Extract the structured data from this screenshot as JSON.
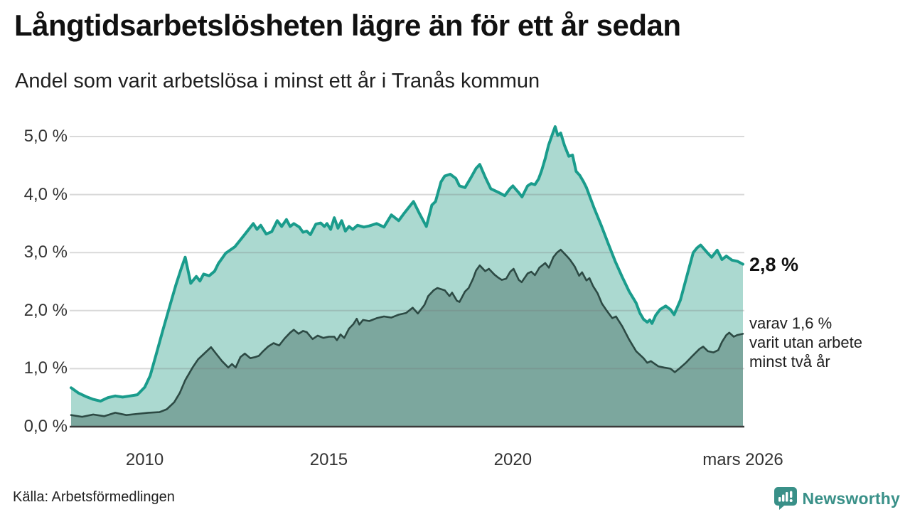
{
  "header": {
    "title": "Långtidsarbetslösheten lägre än för ett år sedan",
    "subtitle": "Andel som varit arbetslösa i minst ett år i Tranås kommun"
  },
  "annotations": {
    "end_value": "2,8 %",
    "sub_lines": [
      "varav 1,6 %",
      "varit utan arbete",
      "minst två år"
    ]
  },
  "footer": {
    "source": "Källa: Arbetsförmedlingen",
    "brand": "Newsworthy"
  },
  "colors": {
    "series1_line": "#1a9c8c",
    "series1_fill": "#abd9d0",
    "series2_line": "#2d4a44",
    "series2_fill": "#7ca79e",
    "grid": "rgba(120,120,120,0.28)",
    "axis": "#3a3a3a",
    "brand": "#399088"
  },
  "chart_data": {
    "type": "area",
    "title": "Långtidsarbetslösheten lägre än för ett år sedan",
    "subtitle": "Andel som varit arbetslösa i minst ett år i Tranås kommun",
    "unit": "%",
    "x_range": [
      2008,
      2026.25
    ],
    "y_range": [
      0,
      5.3
    ],
    "grid": true,
    "x_ticks": [
      {
        "label": "2010",
        "year": 2010
      },
      {
        "label": "2015",
        "year": 2015
      },
      {
        "label": "2020",
        "year": 2020
      },
      {
        "label": "mars 2026",
        "year": 2026.25
      }
    ],
    "y_ticks": [
      {
        "label": "0,0 %",
        "value": 0
      },
      {
        "label": "1,0 %",
        "value": 1
      },
      {
        "label": "2,0 %",
        "value": 2
      },
      {
        "label": "3,0 %",
        "value": 3
      },
      {
        "label": "4,0 %",
        "value": 4
      },
      {
        "label": "5,0 %",
        "value": 5
      }
    ],
    "series": [
      {
        "name": "arbetslösa minst ett år",
        "end_value_pct": 2.8,
        "end_label": "2,8 %",
        "points": [
          [
            2008.0,
            0.67
          ],
          [
            2008.2,
            0.58
          ],
          [
            2008.4,
            0.52
          ],
          [
            2008.6,
            0.47
          ],
          [
            2008.8,
            0.44
          ],
          [
            2009.0,
            0.5
          ],
          [
            2009.2,
            0.53
          ],
          [
            2009.4,
            0.51
          ],
          [
            2009.6,
            0.53
          ],
          [
            2009.8,
            0.55
          ],
          [
            2010.0,
            0.68
          ],
          [
            2010.15,
            0.88
          ],
          [
            2010.3,
            1.22
          ],
          [
            2010.5,
            1.68
          ],
          [
            2010.7,
            2.12
          ],
          [
            2010.85,
            2.45
          ],
          [
            2011.0,
            2.74
          ],
          [
            2011.1,
            2.92
          ],
          [
            2011.25,
            2.47
          ],
          [
            2011.4,
            2.59
          ],
          [
            2011.5,
            2.51
          ],
          [
            2011.6,
            2.63
          ],
          [
            2011.75,
            2.6
          ],
          [
            2011.9,
            2.68
          ],
          [
            2012.0,
            2.81
          ],
          [
            2012.2,
            2.99
          ],
          [
            2012.45,
            3.1
          ],
          [
            2012.7,
            3.3
          ],
          [
            2012.95,
            3.5
          ],
          [
            2013.05,
            3.4
          ],
          [
            2013.15,
            3.47
          ],
          [
            2013.3,
            3.32
          ],
          [
            2013.45,
            3.36
          ],
          [
            2013.6,
            3.55
          ],
          [
            2013.72,
            3.45
          ],
          [
            2013.85,
            3.57
          ],
          [
            2013.95,
            3.45
          ],
          [
            2014.05,
            3.5
          ],
          [
            2014.2,
            3.44
          ],
          [
            2014.3,
            3.35
          ],
          [
            2014.4,
            3.37
          ],
          [
            2014.5,
            3.31
          ],
          [
            2014.65,
            3.49
          ],
          [
            2014.78,
            3.51
          ],
          [
            2014.88,
            3.45
          ],
          [
            2014.95,
            3.5
          ],
          [
            2015.05,
            3.4
          ],
          [
            2015.15,
            3.6
          ],
          [
            2015.25,
            3.42
          ],
          [
            2015.35,
            3.55
          ],
          [
            2015.45,
            3.37
          ],
          [
            2015.55,
            3.45
          ],
          [
            2015.65,
            3.4
          ],
          [
            2015.78,
            3.47
          ],
          [
            2015.95,
            3.44
          ],
          [
            2016.1,
            3.46
          ],
          [
            2016.3,
            3.5
          ],
          [
            2016.5,
            3.44
          ],
          [
            2016.7,
            3.65
          ],
          [
            2016.9,
            3.55
          ],
          [
            2017.05,
            3.68
          ],
          [
            2017.3,
            3.88
          ],
          [
            2017.45,
            3.69
          ],
          [
            2017.65,
            3.45
          ],
          [
            2017.8,
            3.82
          ],
          [
            2017.9,
            3.88
          ],
          [
            2018.05,
            4.22
          ],
          [
            2018.15,
            4.32
          ],
          [
            2018.3,
            4.35
          ],
          [
            2018.45,
            4.28
          ],
          [
            2018.55,
            4.15
          ],
          [
            2018.7,
            4.12
          ],
          [
            2018.85,
            4.28
          ],
          [
            2019.0,
            4.45
          ],
          [
            2019.1,
            4.52
          ],
          [
            2019.25,
            4.3
          ],
          [
            2019.4,
            4.1
          ],
          [
            2019.6,
            4.04
          ],
          [
            2019.78,
            3.98
          ],
          [
            2019.92,
            4.1
          ],
          [
            2020.0,
            4.15
          ],
          [
            2020.15,
            4.04
          ],
          [
            2020.25,
            3.96
          ],
          [
            2020.4,
            4.15
          ],
          [
            2020.5,
            4.19
          ],
          [
            2020.6,
            4.17
          ],
          [
            2020.7,
            4.27
          ],
          [
            2020.78,
            4.41
          ],
          [
            2020.88,
            4.62
          ],
          [
            2020.97,
            4.85
          ],
          [
            2021.08,
            5.05
          ],
          [
            2021.15,
            5.17
          ],
          [
            2021.22,
            5.02
          ],
          [
            2021.3,
            5.06
          ],
          [
            2021.4,
            4.85
          ],
          [
            2021.52,
            4.66
          ],
          [
            2021.62,
            4.68
          ],
          [
            2021.72,
            4.4
          ],
          [
            2021.82,
            4.33
          ],
          [
            2021.92,
            4.22
          ],
          [
            2022.0,
            4.12
          ],
          [
            2022.2,
            3.78
          ],
          [
            2022.4,
            3.47
          ],
          [
            2022.6,
            3.14
          ],
          [
            2022.78,
            2.85
          ],
          [
            2022.97,
            2.58
          ],
          [
            2023.16,
            2.33
          ],
          [
            2023.35,
            2.13
          ],
          [
            2023.45,
            1.96
          ],
          [
            2023.55,
            1.85
          ],
          [
            2023.65,
            1.8
          ],
          [
            2023.72,
            1.84
          ],
          [
            2023.78,
            1.78
          ],
          [
            2023.88,
            1.92
          ],
          [
            2024.0,
            2.02
          ],
          [
            2024.15,
            2.08
          ],
          [
            2024.28,
            2.02
          ],
          [
            2024.38,
            1.93
          ],
          [
            2024.55,
            2.18
          ],
          [
            2024.72,
            2.58
          ],
          [
            2024.9,
            3.0
          ],
          [
            2025.0,
            3.08
          ],
          [
            2025.1,
            3.13
          ],
          [
            2025.28,
            3.0
          ],
          [
            2025.4,
            2.92
          ],
          [
            2025.55,
            3.04
          ],
          [
            2025.68,
            2.88
          ],
          [
            2025.8,
            2.94
          ],
          [
            2025.95,
            2.87
          ],
          [
            2026.1,
            2.85
          ],
          [
            2026.25,
            2.8
          ]
        ]
      },
      {
        "name": "varav utan arbete minst två år",
        "end_value_pct": 1.6,
        "end_label": "1,6 %",
        "points": [
          [
            2008.0,
            0.2
          ],
          [
            2008.3,
            0.17
          ],
          [
            2008.6,
            0.21
          ],
          [
            2008.9,
            0.18
          ],
          [
            2009.2,
            0.24
          ],
          [
            2009.5,
            0.2
          ],
          [
            2009.8,
            0.22
          ],
          [
            2010.1,
            0.24
          ],
          [
            2010.4,
            0.25
          ],
          [
            2010.6,
            0.3
          ],
          [
            2010.8,
            0.42
          ],
          [
            2010.95,
            0.58
          ],
          [
            2011.1,
            0.8
          ],
          [
            2011.3,
            1.02
          ],
          [
            2011.45,
            1.16
          ],
          [
            2011.6,
            1.25
          ],
          [
            2011.8,
            1.37
          ],
          [
            2011.95,
            1.25
          ],
          [
            2012.1,
            1.13
          ],
          [
            2012.27,
            1.02
          ],
          [
            2012.37,
            1.08
          ],
          [
            2012.47,
            1.02
          ],
          [
            2012.6,
            1.2
          ],
          [
            2012.72,
            1.26
          ],
          [
            2012.87,
            1.18
          ],
          [
            2013.0,
            1.2
          ],
          [
            2013.1,
            1.22
          ],
          [
            2013.2,
            1.29
          ],
          [
            2013.35,
            1.38
          ],
          [
            2013.5,
            1.44
          ],
          [
            2013.65,
            1.4
          ],
          [
            2013.8,
            1.52
          ],
          [
            2013.95,
            1.62
          ],
          [
            2014.05,
            1.67
          ],
          [
            2014.18,
            1.6
          ],
          [
            2014.3,
            1.65
          ],
          [
            2014.4,
            1.63
          ],
          [
            2014.56,
            1.51
          ],
          [
            2014.7,
            1.57
          ],
          [
            2014.85,
            1.53
          ],
          [
            2015.0,
            1.55
          ],
          [
            2015.15,
            1.55
          ],
          [
            2015.22,
            1.49
          ],
          [
            2015.32,
            1.59
          ],
          [
            2015.42,
            1.53
          ],
          [
            2015.55,
            1.69
          ],
          [
            2015.67,
            1.77
          ],
          [
            2015.76,
            1.86
          ],
          [
            2015.83,
            1.76
          ],
          [
            2015.93,
            1.84
          ],
          [
            2016.1,
            1.82
          ],
          [
            2016.3,
            1.87
          ],
          [
            2016.5,
            1.9
          ],
          [
            2016.7,
            1.88
          ],
          [
            2016.9,
            1.93
          ],
          [
            2017.1,
            1.96
          ],
          [
            2017.28,
            2.05
          ],
          [
            2017.42,
            1.95
          ],
          [
            2017.6,
            2.1
          ],
          [
            2017.7,
            2.25
          ],
          [
            2017.85,
            2.35
          ],
          [
            2017.95,
            2.39
          ],
          [
            2018.15,
            2.35
          ],
          [
            2018.28,
            2.25
          ],
          [
            2018.35,
            2.31
          ],
          [
            2018.48,
            2.17
          ],
          [
            2018.55,
            2.15
          ],
          [
            2018.7,
            2.33
          ],
          [
            2018.8,
            2.39
          ],
          [
            2018.92,
            2.55
          ],
          [
            2019.0,
            2.69
          ],
          [
            2019.1,
            2.78
          ],
          [
            2019.25,
            2.68
          ],
          [
            2019.35,
            2.72
          ],
          [
            2019.5,
            2.62
          ],
          [
            2019.6,
            2.57
          ],
          [
            2019.7,
            2.53
          ],
          [
            2019.82,
            2.55
          ],
          [
            2019.93,
            2.67
          ],
          [
            2020.02,
            2.72
          ],
          [
            2020.16,
            2.53
          ],
          [
            2020.24,
            2.49
          ],
          [
            2020.4,
            2.64
          ],
          [
            2020.5,
            2.67
          ],
          [
            2020.6,
            2.61
          ],
          [
            2020.72,
            2.74
          ],
          [
            2020.88,
            2.82
          ],
          [
            2020.98,
            2.74
          ],
          [
            2021.1,
            2.92
          ],
          [
            2021.2,
            3.0
          ],
          [
            2021.3,
            3.05
          ],
          [
            2021.45,
            2.95
          ],
          [
            2021.55,
            2.88
          ],
          [
            2021.68,
            2.76
          ],
          [
            2021.8,
            2.6
          ],
          [
            2021.88,
            2.66
          ],
          [
            2022.0,
            2.52
          ],
          [
            2022.08,
            2.56
          ],
          [
            2022.18,
            2.42
          ],
          [
            2022.3,
            2.3
          ],
          [
            2022.42,
            2.12
          ],
          [
            2022.55,
            2.0
          ],
          [
            2022.7,
            1.87
          ],
          [
            2022.8,
            1.9
          ],
          [
            2022.97,
            1.73
          ],
          [
            2023.16,
            1.5
          ],
          [
            2023.35,
            1.3
          ],
          [
            2023.55,
            1.18
          ],
          [
            2023.65,
            1.1
          ],
          [
            2023.75,
            1.13
          ],
          [
            2023.95,
            1.04
          ],
          [
            2024.1,
            1.02
          ],
          [
            2024.28,
            1.0
          ],
          [
            2024.4,
            0.94
          ],
          [
            2024.52,
            1.0
          ],
          [
            2024.7,
            1.1
          ],
          [
            2024.88,
            1.22
          ],
          [
            2025.07,
            1.34
          ],
          [
            2025.17,
            1.38
          ],
          [
            2025.3,
            1.3
          ],
          [
            2025.45,
            1.28
          ],
          [
            2025.58,
            1.32
          ],
          [
            2025.68,
            1.46
          ],
          [
            2025.8,
            1.58
          ],
          [
            2025.88,
            1.62
          ],
          [
            2026.0,
            1.55
          ],
          [
            2026.1,
            1.58
          ],
          [
            2026.25,
            1.6
          ]
        ]
      }
    ]
  }
}
